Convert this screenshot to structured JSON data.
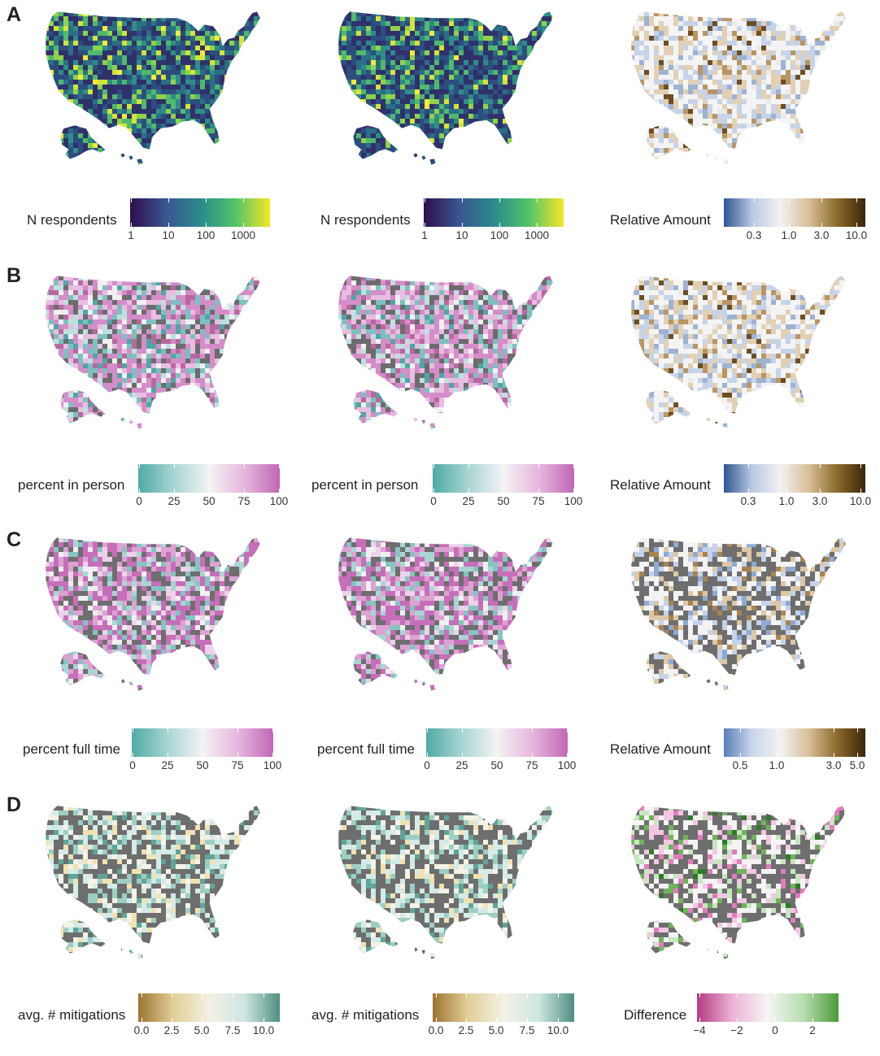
{
  "rows": [
    {
      "label": "A",
      "panels": [
        {
          "map": "viridis",
          "legend": {
            "title": "N respondents",
            "colors": [
              "#2f0f4d",
              "#3a5490",
              "#2a8a8c",
              "#50c46a",
              "#f5e626"
            ],
            "ticks": [
              {
                "label": "1",
                "pos": 0
              },
              {
                "label": "10",
                "pos": 0.27
              },
              {
                "label": "100",
                "pos": 0.54
              },
              {
                "label": "1000",
                "pos": 0.81
              }
            ]
          }
        },
        {
          "map": "viridis",
          "legend": {
            "title": "N respondents",
            "colors": [
              "#2f0f4d",
              "#3a5490",
              "#2a8a8c",
              "#50c46a",
              "#f5e626"
            ],
            "ticks": [
              {
                "label": "1",
                "pos": 0
              },
              {
                "label": "10",
                "pos": 0.27
              },
              {
                "label": "100",
                "pos": 0.54
              },
              {
                "label": "1000",
                "pos": 0.81
              }
            ]
          }
        },
        {
          "map": "relative",
          "legend": {
            "title": "Relative Amount",
            "colors": [
              "#2f5690",
              "#b9c9e3",
              "#f2f2f2",
              "#d8bf98",
              "#8c6a2b",
              "#3b2508"
            ],
            "ticks": [
              {
                "label": "0.3",
                "pos": 0.21
              },
              {
                "label": "1.0",
                "pos": 0.46
              },
              {
                "label": "3.0",
                "pos": 0.69
              },
              {
                "label": "10.0",
                "pos": 0.94
              }
            ]
          }
        }
      ]
    },
    {
      "label": "B",
      "panels": [
        {
          "map": "inperson",
          "legend": {
            "title": "percent in person",
            "colors": [
              "#4faaa7",
              "#a7d5d2",
              "#f3f3f3",
              "#e6b6de",
              "#c067b6"
            ],
            "ticks": [
              {
                "label": "0",
                "pos": 0
              },
              {
                "label": "25",
                "pos": 0.25
              },
              {
                "label": "50",
                "pos": 0.5
              },
              {
                "label": "75",
                "pos": 0.75
              },
              {
                "label": "100",
                "pos": 1
              }
            ]
          }
        },
        {
          "map": "inperson",
          "legend": {
            "title": "percent in person",
            "colors": [
              "#4faaa7",
              "#a7d5d2",
              "#f3f3f3",
              "#e6b6de",
              "#c067b6"
            ],
            "ticks": [
              {
                "label": "0",
                "pos": 0
              },
              {
                "label": "25",
                "pos": 0.25
              },
              {
                "label": "50",
                "pos": 0.5
              },
              {
                "label": "75",
                "pos": 0.75
              },
              {
                "label": "100",
                "pos": 1
              }
            ]
          }
        },
        {
          "map": "relative2",
          "legend": {
            "title": "Relative Amount",
            "colors": [
              "#2f5690",
              "#b9c9e3",
              "#f2f2f2",
              "#d8bf98",
              "#8c6a2b",
              "#3b2508"
            ],
            "ticks": [
              {
                "label": "0.3",
                "pos": 0.17
              },
              {
                "label": "1.0",
                "pos": 0.44
              },
              {
                "label": "3.0",
                "pos": 0.68
              },
              {
                "label": "10.0",
                "pos": 0.97
              }
            ]
          }
        }
      ]
    },
    {
      "label": "C",
      "panels": [
        {
          "map": "fulltime",
          "legend": {
            "title": "percent full time",
            "colors": [
              "#4faaa7",
              "#a7d5d2",
              "#f3f3f3",
              "#e6b6de",
              "#c067b6"
            ],
            "ticks": [
              {
                "label": "0",
                "pos": 0
              },
              {
                "label": "25",
                "pos": 0.25
              },
              {
                "label": "50",
                "pos": 0.5
              },
              {
                "label": "75",
                "pos": 0.75
              },
              {
                "label": "100",
                "pos": 1
              }
            ]
          }
        },
        {
          "map": "fulltime",
          "legend": {
            "title": "percent full time",
            "colors": [
              "#4faaa7",
              "#a7d5d2",
              "#f3f3f3",
              "#e6b6de",
              "#c067b6"
            ],
            "ticks": [
              {
                "label": "0",
                "pos": 0
              },
              {
                "label": "25",
                "pos": 0.25
              },
              {
                "label": "50",
                "pos": 0.5
              },
              {
                "label": "75",
                "pos": 0.75
              },
              {
                "label": "100",
                "pos": 1
              }
            ]
          }
        },
        {
          "map": "relative3",
          "legend": {
            "title": "Relative Amount",
            "colors": [
              "#5a7fb8",
              "#c9d6ea",
              "#f2f2f2",
              "#d8bf98",
              "#8c6a2b",
              "#3b2508"
            ],
            "ticks": [
              {
                "label": "0.5",
                "pos": 0.11
              },
              {
                "label": "1.0",
                "pos": 0.37
              },
              {
                "label": "3.0",
                "pos": 0.78
              },
              {
                "label": "5.0",
                "pos": 0.95
              }
            ]
          }
        }
      ]
    },
    {
      "label": "D",
      "panels": [
        {
          "map": "mitig",
          "legend": {
            "title": "avg. # mitigations",
            "colors": [
              "#9d7431",
              "#e2cf97",
              "#f4f1e4",
              "#cfe6e2",
              "#4f8e80"
            ],
            "ticks": [
              {
                "label": "0.0",
                "pos": 0.02
              },
              {
                "label": "2.5",
                "pos": 0.23
              },
              {
                "label": "5.0",
                "pos": 0.45
              },
              {
                "label": "7.5",
                "pos": 0.67
              },
              {
                "label": "10.0",
                "pos": 0.89
              }
            ]
          }
        },
        {
          "map": "mitig",
          "legend": {
            "title": "avg. # mitigations",
            "colors": [
              "#9d7431",
              "#e2cf97",
              "#f4f1e4",
              "#cfe6e2",
              "#4f8e80"
            ],
            "ticks": [
              {
                "label": "0.0",
                "pos": 0.02
              },
              {
                "label": "2.5",
                "pos": 0.23
              },
              {
                "label": "5.0",
                "pos": 0.45
              },
              {
                "label": "7.5",
                "pos": 0.67
              },
              {
                "label": "10.0",
                "pos": 0.89
              }
            ]
          }
        },
        {
          "map": "diff",
          "legend": {
            "title": "Difference",
            "colors": [
              "#b33a84",
              "#ecb3d6",
              "#f5f5f5",
              "#b7ddb0",
              "#4b9a3a"
            ],
            "ticks": [
              {
                "label": "−4",
                "pos": 0.01
              },
              {
                "label": "−2",
                "pos": 0.28
              },
              {
                "label": "0",
                "pos": 0.55
              },
              {
                "label": "2",
                "pos": 0.82
              }
            ]
          }
        }
      ]
    }
  ],
  "palettes": {
    "viridis": {
      "weights": [
        [
          "#30306b",
          30
        ],
        [
          "#2c4e7e",
          22
        ],
        [
          "#2b6f86",
          16
        ],
        [
          "#2f8d86",
          10
        ],
        [
          "#50b96c",
          10
        ],
        [
          "#8fd34a",
          6
        ],
        [
          "#d4e43a",
          4
        ],
        [
          "#f1ec3a",
          2
        ]
      ]
    },
    "relative": {
      "weights": [
        [
          "#f4f4f4",
          40
        ],
        [
          "#c6d3e8",
          18
        ],
        [
          "#e1d0b4",
          18
        ],
        [
          "#9eb2d2",
          8
        ],
        [
          "#b89563",
          8
        ],
        [
          "#6d4e22",
          4
        ],
        [
          "#eaeaea",
          4
        ]
      ]
    },
    "relative2": {
      "weights": [
        [
          "#f4f4f4",
          36
        ],
        [
          "#c6d3e8",
          16
        ],
        [
          "#e1d0b4",
          22
        ],
        [
          "#9eb2d2",
          8
        ],
        [
          "#b89563",
          10
        ],
        [
          "#6d4e22",
          5
        ],
        [
          "#eaeaea",
          3
        ]
      ]
    },
    "inperson": {
      "weights": [
        [
          "#d48dc8",
          26
        ],
        [
          "#e8bde0",
          18
        ],
        [
          "#b7699f",
          8
        ],
        [
          "#6c6c6c",
          14
        ],
        [
          "#7cc1bf",
          12
        ],
        [
          "#bfe0df",
          8
        ],
        [
          "#f0f0f0",
          8
        ],
        [
          "#4fa6a5",
          6
        ]
      ]
    },
    "fulltime": {
      "weights": [
        [
          "#c76eba",
          26
        ],
        [
          "#dca3d2",
          16
        ],
        [
          "#6e6e6e",
          22
        ],
        [
          "#86c4c1",
          10
        ],
        [
          "#edd3ea",
          10
        ],
        [
          "#f0f0f0",
          8
        ],
        [
          "#a9d6d3",
          8
        ]
      ]
    },
    "relative3": {
      "weights": [
        [
          "#6e6e6e",
          40
        ],
        [
          "#f3f3f3",
          24
        ],
        [
          "#dcc8a6",
          14
        ],
        [
          "#c4d3ea",
          10
        ],
        [
          "#8eaad4",
          6
        ],
        [
          "#a98451",
          6
        ]
      ]
    },
    "mitig": {
      "weights": [
        [
          "#6e6e6e",
          42
        ],
        [
          "#d4ebe7",
          18
        ],
        [
          "#f5f2e6",
          14
        ],
        [
          "#9ccfc4",
          12
        ],
        [
          "#f1e2b1",
          8
        ],
        [
          "#5fa598",
          6
        ]
      ]
    },
    "diff": {
      "weights": [
        [
          "#6e6e6e",
          42
        ],
        [
          "#f4f4f4",
          24
        ],
        [
          "#f3c6e3",
          10
        ],
        [
          "#c7e6c0",
          10
        ],
        [
          "#e37bbd",
          6
        ],
        [
          "#6fb45a",
          6
        ],
        [
          "#2f7a2a",
          2
        ]
      ]
    }
  }
}
